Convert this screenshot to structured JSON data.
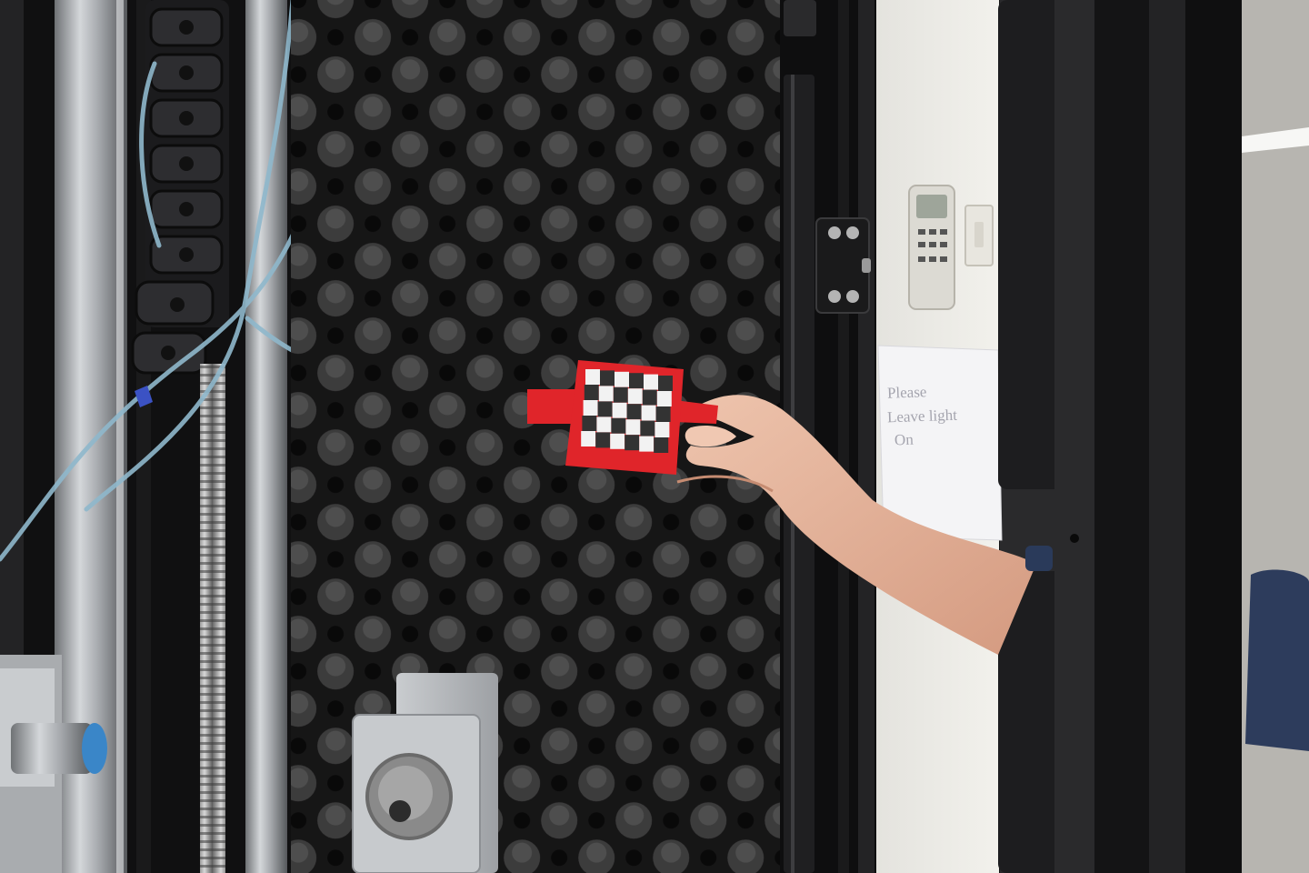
{
  "scene": {
    "colors": {
      "foam": "#1c1b1c",
      "foam_highlight": "#6a6a6a",
      "frame_black": "#0e0e0f",
      "rail_steel": "#b9bcbf",
      "tube_blue": "#8fb8cc",
      "target_red": "#e0252a",
      "checker_dark": "#333333",
      "checker_light": "#f2f2f2",
      "skin": "#e8b8a0",
      "wall": "#ecebe6",
      "sensor_cap": "#3a86c8"
    },
    "checkerboard": {
      "rows": 5,
      "cols": 6
    },
    "note": {
      "lines": [
        "Please",
        "Leave light",
        "On"
      ]
    }
  }
}
